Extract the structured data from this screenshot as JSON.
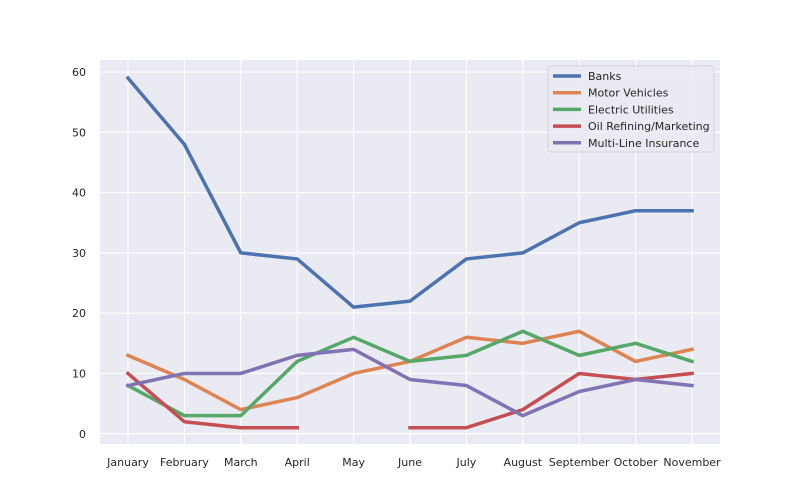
{
  "chart_data": {
    "type": "line",
    "categories": [
      "January",
      "February",
      "March",
      "April",
      "May",
      "June",
      "July",
      "August",
      "September",
      "October",
      "November"
    ],
    "series": [
      {
        "name": "Banks",
        "color": "#4c72b0",
        "values": [
          59,
          48,
          30,
          29,
          21,
          22,
          29,
          30,
          35,
          37,
          37
        ]
      },
      {
        "name": "Motor Vehicles",
        "color": "#dd8452",
        "values": [
          13,
          9,
          4,
          6,
          10,
          12,
          16,
          15,
          17,
          12,
          14
        ]
      },
      {
        "name": "Electric Utilities",
        "color": "#55a868",
        "values": [
          8,
          3,
          3,
          12,
          16,
          12,
          13,
          17,
          13,
          15,
          12
        ]
      },
      {
        "name": "Oil Refining/Marketing",
        "color": "#c44e52",
        "values": [
          10,
          2,
          1,
          1,
          null,
          1,
          1,
          4,
          10,
          9,
          10
        ]
      },
      {
        "name": "Multi-Line Insurance",
        "color": "#8172b3",
        "values": [
          8,
          10,
          10,
          13,
          14,
          9,
          8,
          3,
          7,
          9,
          8
        ]
      }
    ],
    "yticks": [
      0,
      10,
      20,
      30,
      40,
      50,
      60
    ],
    "ylim": [
      -1.7,
      62.0
    ],
    "grid": true,
    "legend": "top-right",
    "background": "#eaeaf2"
  }
}
